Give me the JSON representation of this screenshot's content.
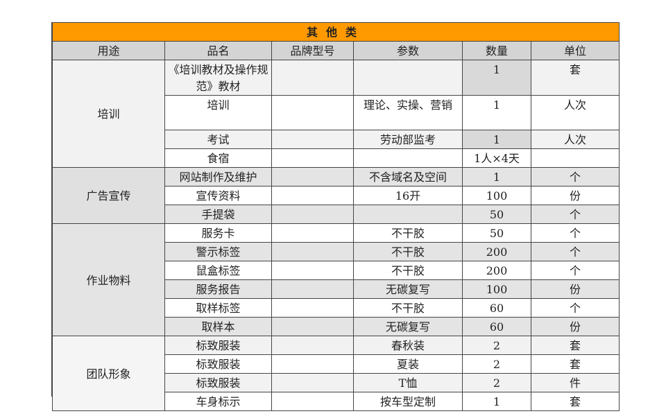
{
  "title": "其他类",
  "headers": [
    "用途",
    "品名",
    "品牌型号",
    "参数",
    "数量",
    "单位"
  ],
  "groups": [
    {
      "name": "培训",
      "rows": [
        {
          "item": "《培训教材及操作规范》教材",
          "brand": "",
          "param": "",
          "qty": "1",
          "unit": "套"
        },
        {
          "item": "培训",
          "brand": "",
          "param": "理论、实操、营销",
          "qty": "1",
          "unit": "人次"
        },
        {
          "item": "考试",
          "brand": "",
          "param": "劳动部监考",
          "qty": "1",
          "unit": "人次"
        },
        {
          "item": "食宿",
          "brand": "",
          "param": "",
          "qty": "1人×4天",
          "unit": ""
        }
      ]
    },
    {
      "name": "广告宣传",
      "rows": [
        {
          "item": "网站制作及维护",
          "brand": "",
          "param": "不含域名及空间",
          "qty": "1",
          "unit": "个"
        },
        {
          "item": "宣传资料",
          "brand": "",
          "param": "16开",
          "qty": "100",
          "unit": "份"
        },
        {
          "item": "手提袋",
          "brand": "",
          "param": "",
          "qty": "50",
          "unit": "个"
        }
      ]
    },
    {
      "name": "作业物料",
      "rows": [
        {
          "item": "服务卡",
          "brand": "",
          "param": "不干胶",
          "qty": "50",
          "unit": "个"
        },
        {
          "item": "警示标签",
          "brand": "",
          "param": "不干胶",
          "qty": "200",
          "unit": "个"
        },
        {
          "item": "鼠盒标签",
          "brand": "",
          "param": "不干胶",
          "qty": "200",
          "unit": "个"
        },
        {
          "item": "服务报告",
          "brand": "",
          "param": "无碳复写",
          "qty": "100",
          "unit": "份"
        },
        {
          "item": "取样标签",
          "brand": "",
          "param": "不干胶",
          "qty": "60",
          "unit": "个"
        },
        {
          "item": "取样本",
          "brand": "",
          "param": "无碳复写",
          "qty": "60",
          "unit": "份"
        }
      ]
    },
    {
      "name": "团队形象",
      "rows": [
        {
          "item": "标致服装",
          "brand": "",
          "param": "春秋装",
          "qty": "2",
          "unit": "套"
        },
        {
          "item": "标致服装",
          "brand": "",
          "param": "夏装",
          "qty": "2",
          "unit": "套"
        },
        {
          "item": "标致服装",
          "brand": "",
          "param": "T恤",
          "qty": "2",
          "unit": "件"
        },
        {
          "item": "车身标示",
          "brand": "",
          "param": "按车型定制",
          "qty": "1",
          "unit": "套"
        }
      ]
    }
  ],
  "colors": {
    "title_bg": "#ff9900",
    "header_bg": "#d4d4d4"
  }
}
